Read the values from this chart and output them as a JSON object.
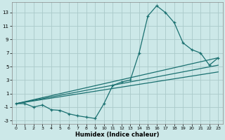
{
  "xlabel": "Humidex (Indice chaleur)",
  "bg_color": "#cce8e8",
  "grid_color": "#aacaca",
  "line_color": "#1a7070",
  "xlim": [
    -0.5,
    23.5
  ],
  "ylim": [
    -3.5,
    14.5
  ],
  "xticks": [
    0,
    1,
    2,
    3,
    4,
    5,
    6,
    7,
    8,
    9,
    10,
    11,
    12,
    13,
    14,
    15,
    16,
    17,
    18,
    19,
    20,
    21,
    22,
    23
  ],
  "yticks": [
    -3,
    -1,
    1,
    3,
    5,
    7,
    9,
    11,
    13
  ],
  "series1_x": [
    0,
    1,
    2,
    3,
    4,
    5,
    6,
    7,
    8,
    9,
    10,
    11,
    12,
    13,
    14,
    15,
    16,
    17,
    18,
    19,
    20,
    21,
    22,
    23
  ],
  "series1_y": [
    -0.5,
    -0.5,
    -1.0,
    -0.7,
    -1.4,
    -1.5,
    -2.0,
    -2.3,
    -2.5,
    -2.7,
    -0.5,
    2.2,
    2.7,
    3.0,
    7.0,
    12.5,
    14.0,
    13.0,
    11.5,
    8.5,
    7.5,
    7.0,
    5.2,
    6.3
  ],
  "line1_x": [
    0,
    23
  ],
  "line1_y": [
    -0.5,
    6.3
  ],
  "line2_x": [
    0,
    23
  ],
  "line2_y": [
    -0.5,
    5.2
  ],
  "line3_x": [
    0,
    23
  ],
  "line3_y": [
    -0.5,
    4.2
  ]
}
